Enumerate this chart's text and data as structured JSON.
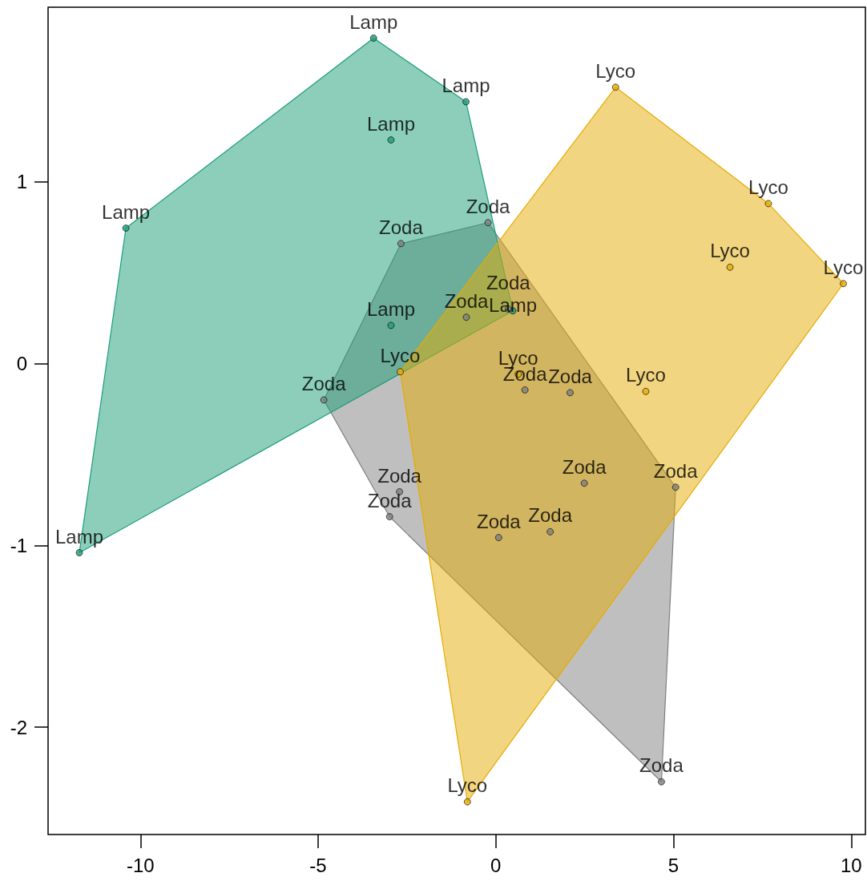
{
  "chart_data": {
    "type": "scatter",
    "xlim": [
      -12.6,
      10.4
    ],
    "ylim": [
      -2.59,
      1.96
    ],
    "xticks": [
      -10,
      -5,
      0,
      5,
      10
    ],
    "yticks": [
      -2,
      -1,
      0,
      1
    ],
    "grid": false,
    "series": [
      {
        "type": "area",
        "color": "#7f7f7f",
        "x": [
          -0.22,
          5.06,
          4.66,
          -2.99,
          -4.84,
          -2.67
        ],
        "values": [
          0.775,
          -0.68,
          -2.3,
          -0.842,
          -0.2,
          0.66
        ]
      },
      {
        "type": "area",
        "color": "#1b9e77",
        "x": [
          -3.44,
          -0.84,
          0.48,
          -11.72,
          -10.41
        ],
        "values": [
          1.79,
          1.44,
          0.29,
          -1.04,
          0.745
        ]
      },
      {
        "type": "area",
        "color": "#e6ab02",
        "x": [
          3.37,
          7.67,
          9.78,
          -0.8,
          -2.69
        ],
        "values": [
          1.52,
          0.88,
          0.44,
          -2.41,
          -0.045
        ]
      },
      {
        "color": "#1b9e77",
        "x": [
          -3.44,
          -0.84,
          -2.95,
          -10.41,
          -2.95,
          0.48,
          -11.72
        ],
        "values": [
          1.79,
          1.44,
          1.23,
          0.745,
          0.21,
          0.29,
          -1.04
        ],
        "value_labels": [
          "Lamp",
          "Lamp",
          "Lamp",
          "Lamp",
          "Lamp",
          "Lamp",
          "Lamp"
        ]
      },
      {
        "color": "#7f7f7f",
        "x": [
          -0.22,
          -2.67,
          -0.83,
          0.35,
          -4.84,
          0.82,
          2.09,
          -2.71,
          -2.99,
          2.49,
          5.06,
          1.53,
          0.08,
          4.66
        ],
        "values": [
          0.775,
          0.66,
          0.255,
          0.3,
          -0.2,
          -0.145,
          -0.16,
          -0.705,
          -0.842,
          -0.658,
          -0.68,
          -0.925,
          -0.957,
          -2.3
        ],
        "value_labels": [
          "Zoda",
          "Zoda",
          "Zoda",
          "Zoda",
          "Zoda",
          "Zoda",
          "Zoda",
          "Zoda",
          "Zoda",
          "Zoda",
          "Zoda",
          "Zoda",
          "Zoda",
          "Zoda"
        ]
      },
      {
        "color": "#e6ab02",
        "x": [
          3.37,
          7.67,
          6.59,
          9.78,
          -2.69,
          0.63,
          4.22,
          -0.8
        ],
        "values": [
          1.52,
          0.88,
          0.53,
          0.44,
          -0.045,
          -0.058,
          -0.153,
          -2.41
        ],
        "value_labels": [
          "Lyco",
          "Lyco",
          "Lyco",
          "Lyco",
          "Lyco",
          "Lyco",
          "Lyco",
          "Lyco"
        ]
      }
    ]
  }
}
